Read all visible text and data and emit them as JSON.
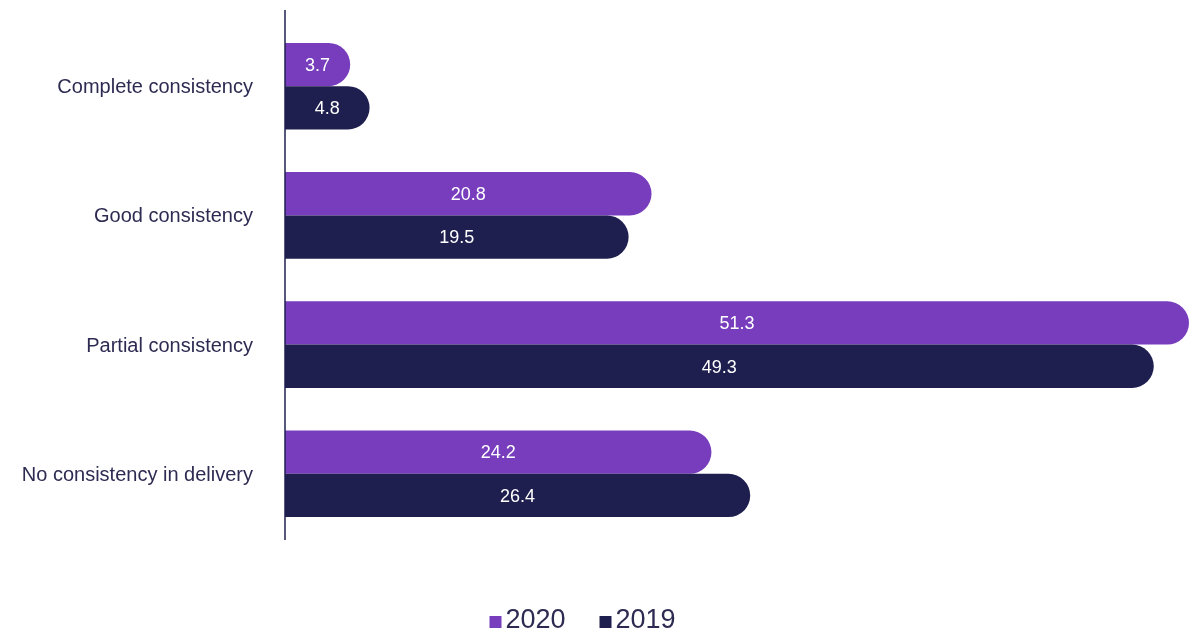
{
  "chart_data": {
    "type": "bar",
    "orientation": "horizontal",
    "categories": [
      "Complete consistency",
      "Good consistency",
      "Partial consistency",
      "No consistency in delivery"
    ],
    "series": [
      {
        "name": "2020",
        "color": "#773dbd",
        "values": [
          3.7,
          20.8,
          51.3,
          24.2
        ]
      },
      {
        "name": "2019",
        "color": "#1e1f4f",
        "values": [
          4.8,
          19.5,
          49.3,
          26.4
        ]
      }
    ],
    "data_labels": true,
    "legend": "bottom"
  }
}
